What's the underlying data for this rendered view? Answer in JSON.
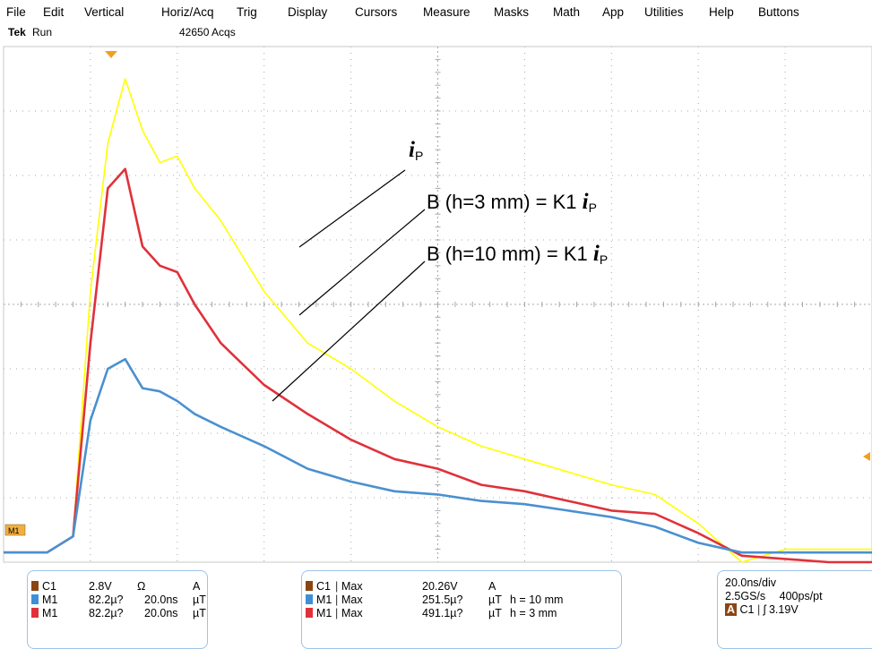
{
  "menu": {
    "file": "File",
    "edit": "Edit",
    "vertical": "Vertical",
    "horiz": "Horiz/Acq",
    "trig": "Trig",
    "display": "Display",
    "cursors": "Cursors",
    "measure": "Measure",
    "masks": "Masks",
    "math": "Math",
    "app": "App",
    "utilities": "Utilities",
    "help": "Help",
    "buttons": "Buttons"
  },
  "status": {
    "brand": "Tek",
    "run_state": "Run",
    "acqs": "42650 Acqs"
  },
  "annotations": {
    "ip": "i",
    "ip_sub": "P",
    "b3_text": "B (h=3 mm) = K1 ",
    "b3_i": "i",
    "b3_sub": "P",
    "b10_text": "B (h=10 mm)  = K1 ",
    "b10_i": "i",
    "b10_sub": "P"
  },
  "markers": {
    "m1_ref": "M1"
  },
  "channels": [
    {
      "name": "C1",
      "scale": "2.8V",
      "imp": "Ω",
      "unit": "A",
      "color": "#8b4513"
    },
    {
      "name": "M1",
      "scale": "82.2µ?",
      "time": "20.0ns",
      "unit": "µT",
      "color": "#3f8fd6"
    },
    {
      "name": "M1",
      "scale": "82.2µ?",
      "time": "20.0ns",
      "unit": "µT",
      "color": "#e0313a"
    }
  ],
  "measurements": [
    {
      "src": "C1",
      "type": "Max",
      "value": "20.26V",
      "unit": "A",
      "note": "",
      "color": "#8b4513"
    },
    {
      "src": "M1",
      "type": "Max",
      "value": "251.5µ?",
      "unit": "µT",
      "note": "h = 10 mm",
      "color": "#3f8fd6"
    },
    {
      "src": "M1",
      "type": "Max",
      "value": "491.1µ?",
      "unit": "µT",
      "note": "h =  3 mm",
      "color": "#e0313a"
    }
  ],
  "timebase": {
    "scale": "20.0ns/div",
    "rate": "2.5GS/s",
    "res": "400ps/pt",
    "trig_mode": "A",
    "trig_src": "C1",
    "trig_slope": "ʃ",
    "trig_level": "3.19V"
  },
  "trace_colors": {
    "ip": "#ffff00",
    "b3": "#e0313a",
    "b10": "#4a90d0",
    "grid": "#a8a8a8"
  },
  "chart_data": {
    "type": "line",
    "xlabel": "",
    "ylabel": "",
    "x_divisions": 10,
    "y_divisions": 8,
    "x": [
      0.0,
      0.5,
      0.8,
      1.0,
      1.2,
      1.4,
      1.6,
      1.8,
      2.0,
      2.2,
      2.5,
      3.0,
      3.5,
      4.0,
      4.5,
      5.0,
      5.5,
      6.0,
      6.5,
      7.0,
      7.5,
      8.0,
      8.5,
      9.0,
      9.5,
      10.0
    ],
    "series": [
      {
        "name": "i",
        "values": [
          -0.05,
          -0.05,
          0.2,
          4.0,
          6.3,
          7.3,
          6.5,
          6.0,
          6.1,
          5.6,
          5.1,
          4.0,
          3.2,
          2.8,
          2.3,
          1.9,
          1.6,
          1.4,
          1.2,
          1.0,
          0.85,
          0.4,
          -0.2,
          0.0,
          0.0,
          0.0
        ]
      },
      {
        "name": "B (h=3 mm)",
        "values": [
          -0.05,
          -0.05,
          0.2,
          3.2,
          5.6,
          5.9,
          4.7,
          4.4,
          4.3,
          3.8,
          3.2,
          2.55,
          2.1,
          1.7,
          1.4,
          1.25,
          1.0,
          0.9,
          0.75,
          0.6,
          0.55,
          0.25,
          -0.1,
          -0.15,
          -0.2,
          -0.2
        ]
      },
      {
        "name": "B (h=10 mm)",
        "values": [
          -0.05,
          -0.05,
          0.2,
          2.0,
          2.8,
          2.95,
          2.5,
          2.45,
          2.3,
          2.1,
          1.9,
          1.6,
          1.25,
          1.05,
          0.9,
          0.85,
          0.75,
          0.7,
          0.6,
          0.5,
          0.35,
          0.1,
          -0.05,
          -0.05,
          -0.05,
          -0.05
        ]
      }
    ]
  }
}
